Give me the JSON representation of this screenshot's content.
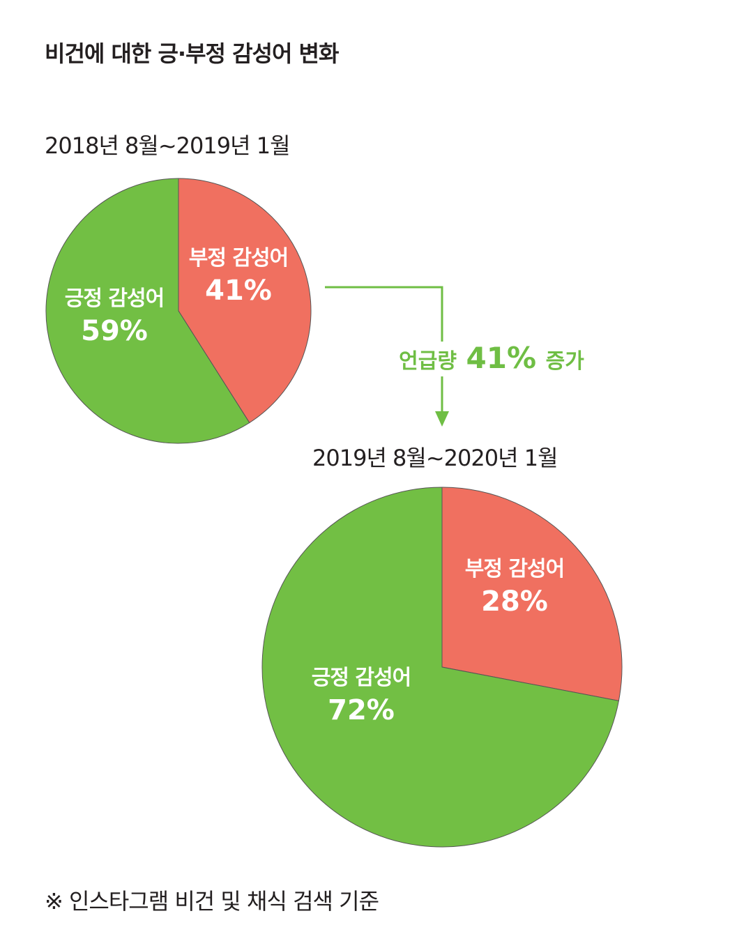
{
  "title": "비건에 대한 긍·부정 감성어 변화",
  "footnote": "※ 인스타그램 비건 및 채식 검색 기준",
  "colors": {
    "positive": "#72bf44",
    "negative": "#f07060",
    "accent": "#6fbe44",
    "stroke": "#555555"
  },
  "annotation": {
    "prefix": "언급량",
    "value": "41%",
    "suffix": "증가"
  },
  "chart_data": [
    {
      "type": "pie",
      "period": "2018년 8월~2019년 1월",
      "slices": [
        {
          "label": "부정 감성어",
          "value": 41,
          "display": "41%"
        },
        {
          "label": "긍정 감성어",
          "value": 59,
          "display": "59%"
        }
      ]
    },
    {
      "type": "pie",
      "period": "2019년 8월~2020년 1월",
      "slices": [
        {
          "label": "부정 감성어",
          "value": 28,
          "display": "28%"
        },
        {
          "label": "긍정 감성어",
          "value": 72,
          "display": "72%"
        }
      ]
    }
  ]
}
